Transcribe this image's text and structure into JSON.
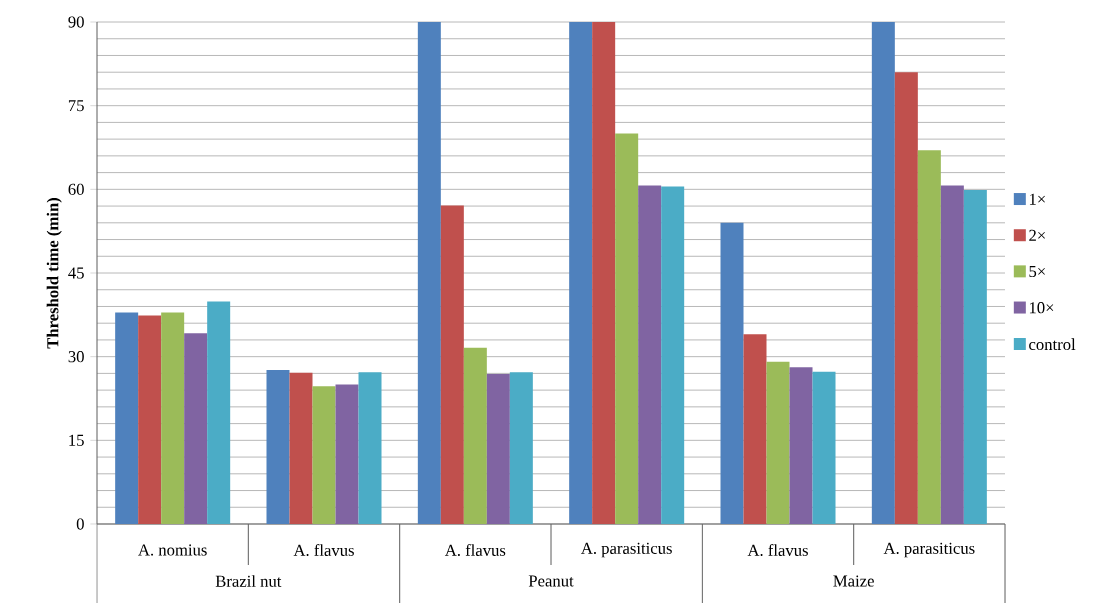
{
  "chart_data": {
    "type": "bar",
    "ylabel": "Threshold  time (min)",
    "categories": [
      "A. nomius",
      "A. flavus",
      "A. flavus",
      "A. parasiticus",
      "A. flavus",
      "A. parasiticus"
    ],
    "annotations": [
      "Brazil nut",
      "Peanut",
      "Maize"
    ],
    "series": [
      {
        "name": "1×",
        "color": "#4f81bd",
        "values": [
          37.9,
          27.6,
          90,
          90,
          54.0,
          90
        ]
      },
      {
        "name": "2×",
        "color": "#c0504d",
        "values": [
          37.4,
          27.1,
          57.1,
          90,
          34.0,
          81.0
        ]
      },
      {
        "name": "5×",
        "color": "#9bbb59",
        "values": [
          37.9,
          24.7,
          31.6,
          70.0,
          29.1,
          67.0
        ]
      },
      {
        "name": "10×",
        "color": "#8064a2",
        "values": [
          34.2,
          25.0,
          26.9,
          60.7,
          28.1,
          60.7
        ]
      },
      {
        "name": "control",
        "color": "#4bacc6",
        "values": [
          39.9,
          27.2,
          27.2,
          60.5,
          27.3,
          59.9
        ]
      }
    ],
    "ylim": [
      0,
      90
    ],
    "yticks": [
      0,
      15,
      30,
      45,
      60,
      75,
      90
    ],
    "grid": "y",
    "legend": "right"
  }
}
